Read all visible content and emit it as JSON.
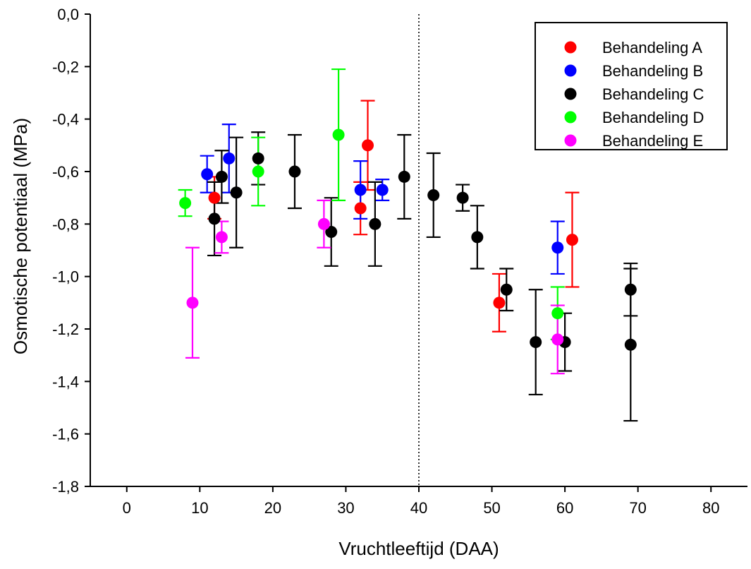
{
  "chart_data": {
    "type": "scatter",
    "xlabel": "Vruchtleeftijd (DAA)",
    "ylabel": "Osmotische potentiaal (MPa)",
    "xlim": [
      -5,
      85
    ],
    "ylim": [
      -1.8,
      0.0
    ],
    "x_ticks": [
      0,
      10,
      20,
      30,
      40,
      50,
      60,
      70,
      80
    ],
    "x_tick_labels": [
      "0",
      "10",
      "20",
      "30",
      "40",
      "50",
      "60",
      "70",
      "80"
    ],
    "y_ticks": [
      0.0,
      -0.2,
      -0.4,
      -0.6,
      -0.8,
      -1.0,
      -1.2,
      -1.4,
      -1.6,
      -1.8
    ],
    "y_tick_labels": [
      "0,0",
      "-0,2",
      "-0,4",
      "-0,6",
      "-0,8",
      "-1,0",
      "-1,2",
      "-1,4",
      "-1,6",
      "-1,8"
    ],
    "grid": false,
    "reference_line": {
      "x": 40,
      "style": "dotted"
    },
    "legend_position": "top-right",
    "series": [
      {
        "name": "Behandeling A",
        "color": "#ff0000",
        "points": [
          {
            "x": 12,
            "y": -0.7,
            "err": 0.08
          },
          {
            "x": 32,
            "y": -0.74,
            "err": 0.1
          },
          {
            "x": 33,
            "y": -0.5,
            "err": 0.17
          },
          {
            "x": 51,
            "y": -1.1,
            "err": 0.11
          },
          {
            "x": 61,
            "y": -0.86,
            "err": 0.18
          }
        ]
      },
      {
        "name": "Behandeling B",
        "color": "#0000ff",
        "points": [
          {
            "x": 11,
            "y": -0.61,
            "err": 0.07
          },
          {
            "x": 14,
            "y": -0.55,
            "err": 0.13
          },
          {
            "x": 32,
            "y": -0.67,
            "err": 0.11
          },
          {
            "x": 35,
            "y": -0.67,
            "err": 0.04
          },
          {
            "x": 59,
            "y": -0.89,
            "err": 0.1
          }
        ]
      },
      {
        "name": "Behandeling C",
        "color": "#000000",
        "points": [
          {
            "x": 12,
            "y": -0.78,
            "err": 0.14
          },
          {
            "x": 13,
            "y": -0.62,
            "err": 0.1
          },
          {
            "x": 15,
            "y": -0.68,
            "err": 0.21
          },
          {
            "x": 18,
            "y": -0.55,
            "err": 0.1
          },
          {
            "x": 23,
            "y": -0.6,
            "err": 0.14
          },
          {
            "x": 28,
            "y": -0.83,
            "err": 0.13
          },
          {
            "x": 34,
            "y": -0.8,
            "err": 0.16
          },
          {
            "x": 38,
            "y": -0.62,
            "err": 0.16
          },
          {
            "x": 42,
            "y": -0.69,
            "err": 0.16
          },
          {
            "x": 46,
            "y": -0.7,
            "err": 0.05
          },
          {
            "x": 48,
            "y": -0.85,
            "err": 0.12
          },
          {
            "x": 52,
            "y": -1.05,
            "err": 0.08
          },
          {
            "x": 56,
            "y": -1.25,
            "err": 0.2
          },
          {
            "x": 60,
            "y": -1.25,
            "err": 0.11
          },
          {
            "x": 69,
            "y": -1.05,
            "err": 0.1
          },
          {
            "x": 69,
            "y": -1.26,
            "err": 0.29
          }
        ]
      },
      {
        "name": "Behandeling D",
        "color": "#00ff00",
        "points": [
          {
            "x": 8,
            "y": -0.72,
            "err": 0.05
          },
          {
            "x": 18,
            "y": -0.6,
            "err": 0.13
          },
          {
            "x": 29,
            "y": -0.46,
            "err": 0.25
          },
          {
            "x": 59,
            "y": -1.14,
            "err": 0.1
          }
        ]
      },
      {
        "name": "Behandeling E",
        "color": "#ff00ff",
        "points": [
          {
            "x": 9,
            "y": -1.1,
            "err": 0.21
          },
          {
            "x": 13,
            "y": -0.85,
            "err": 0.06
          },
          {
            "x": 27,
            "y": -0.8,
            "err": 0.09
          },
          {
            "x": 59,
            "y": -1.24,
            "err": 0.13
          }
        ]
      }
    ]
  }
}
